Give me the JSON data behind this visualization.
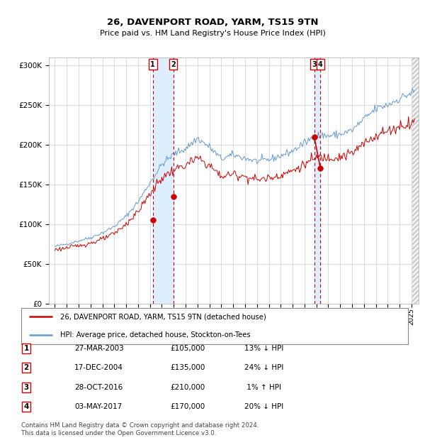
{
  "title": "26, DAVENPORT ROAD, YARM, TS15 9TN",
  "subtitle": "Price paid vs. HM Land Registry's House Price Index (HPI)",
  "legend_line1": "26, DAVENPORT ROAD, YARM, TS15 9TN (detached house)",
  "legend_line2": "HPI: Average price, detached house, Stockton-on-Tees",
  "footer_line1": "Contains HM Land Registry data © Crown copyright and database right 2024.",
  "footer_line2": "This data is licensed under the Open Government Licence v3.0.",
  "transactions": [
    {
      "num": 1,
      "date": "27-MAR-2003",
      "price": 105000,
      "pct": "13%",
      "dir": "↓",
      "date_dec": 2003.24
    },
    {
      "num": 2,
      "date": "17-DEC-2004",
      "price": 135000,
      "pct": "24%",
      "dir": "↓",
      "date_dec": 2004.96
    },
    {
      "num": 3,
      "date": "28-OCT-2016",
      "price": 210000,
      "pct": "1%",
      "dir": "↑",
      "date_dec": 2016.82
    },
    {
      "num": 4,
      "date": "03-MAY-2017",
      "price": 170000,
      "pct": "20%",
      "dir": "↓",
      "date_dec": 2017.34
    }
  ],
  "hpi_yearly": {
    "1995": 72000,
    "1996": 75000,
    "1997": 79000,
    "1998": 83000,
    "1999": 89000,
    "2000": 97000,
    "2001": 110000,
    "2002": 128000,
    "2003": 152000,
    "2004": 175000,
    "2005": 188000,
    "2006": 195000,
    "2007": 208000,
    "2008": 197000,
    "2009": 182000,
    "2010": 187000,
    "2011": 183000,
    "2012": 179000,
    "2013": 181000,
    "2014": 186000,
    "2015": 192000,
    "2016": 202000,
    "2017": 212000,
    "2018": 211000,
    "2019": 213000,
    "2020": 218000,
    "2021": 232000,
    "2022": 245000,
    "2023": 250000,
    "2024": 258000,
    "2025": 265000
  },
  "pp_yearly": {
    "1995": 68000,
    "1996": 70000,
    "1997": 73000,
    "1998": 76000,
    "1999": 81000,
    "2000": 88000,
    "2001": 100000,
    "2002": 116000,
    "2003": 138000,
    "2004": 158000,
    "2005": 168000,
    "2006": 174000,
    "2007": 183000,
    "2008": 174000,
    "2009": 160000,
    "2010": 163000,
    "2011": 160000,
    "2012": 156000,
    "2013": 158000,
    "2014": 162000,
    "2015": 167000,
    "2016": 175000,
    "2017": 184000,
    "2018": 184000,
    "2019": 185000,
    "2020": 189000,
    "2021": 201000,
    "2022": 212000,
    "2023": 217000,
    "2024": 223000,
    "2025": 228000
  },
  "hpi_color": "#6699cc",
  "price_color": "#cc0000",
  "marker_color": "#cc0000",
  "vline_color": "#cc0000",
  "shade_color": "#ddeeff",
  "grid_color": "#cccccc",
  "bg_color": "#ffffff",
  "ylim": [
    0,
    310000
  ],
  "yticks": [
    0,
    50000,
    100000,
    150000,
    200000,
    250000,
    300000
  ],
  "xlim_start": 1994.5,
  "xlim_end": 2025.6
}
